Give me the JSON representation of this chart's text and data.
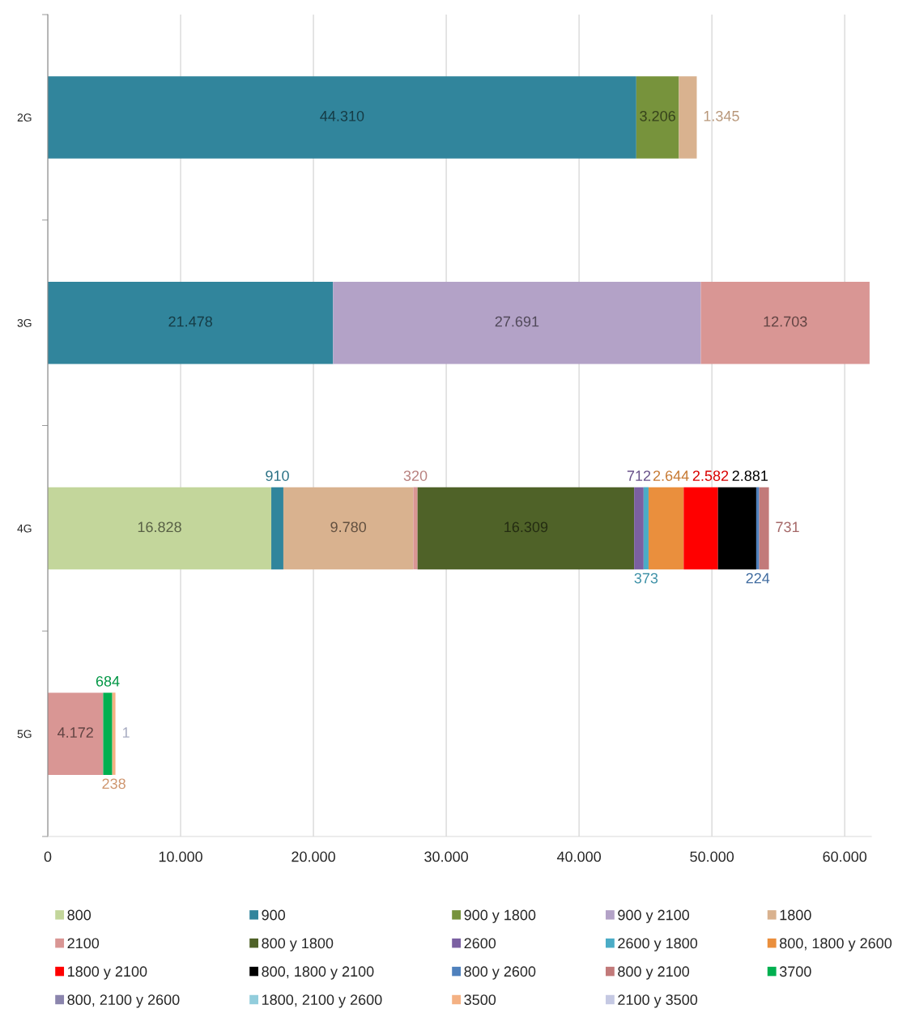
{
  "chart_data": {
    "type": "bar",
    "orientation": "horizontal",
    "stacked": true,
    "categories": [
      "2G",
      "3G",
      "4G",
      "5G"
    ],
    "series": [
      {
        "name": "800",
        "color": "#c3d69b",
        "values": [
          null,
          null,
          16828,
          null
        ],
        "value_labels": [
          null,
          null,
          "16.828",
          null
        ]
      },
      {
        "name": "900",
        "color": "#31859c",
        "values": [
          44310,
          21478,
          910,
          null
        ],
        "value_labels": [
          "44.310",
          "21.478",
          "910",
          null
        ]
      },
      {
        "name": "900 y 1800",
        "color": "#77933c",
        "values": [
          3206,
          null,
          null,
          null
        ],
        "value_labels": [
          "3.206",
          null,
          null,
          null
        ]
      },
      {
        "name": "900 y 2100",
        "color": "#b3a2c7",
        "values": [
          null,
          27691,
          null,
          null
        ],
        "value_labels": [
          null,
          "27.691",
          null,
          null
        ]
      },
      {
        "name": "1800",
        "color": "#d9b28f",
        "values": [
          1345,
          null,
          9780,
          null
        ],
        "value_labels": [
          "1.345",
          null,
          "9.780",
          null
        ]
      },
      {
        "name": "2100",
        "color": "#d99694",
        "values": [
          null,
          12703,
          320,
          4172
        ],
        "value_labels": [
          null,
          "12.703",
          "320",
          "4.172"
        ]
      },
      {
        "name": "800 y 1800",
        "color": "#4f6228",
        "values": [
          null,
          null,
          16309,
          null
        ],
        "value_labels": [
          null,
          null,
          "16.309",
          null
        ]
      },
      {
        "name": "2600",
        "color": "#7b60a2",
        "values": [
          null,
          null,
          712,
          null
        ],
        "value_labels": [
          null,
          null,
          "712",
          null
        ]
      },
      {
        "name": "2600 y 1800",
        "color": "#4bacc6",
        "values": [
          null,
          null,
          373,
          null
        ],
        "value_labels": [
          null,
          null,
          "373",
          null
        ]
      },
      {
        "name": "800, 1800 y 2600",
        "color": "#ea8f3d",
        "values": [
          null,
          null,
          2644,
          null
        ],
        "value_labels": [
          null,
          null,
          "2.644",
          null
        ]
      },
      {
        "name": "1800 y 2100",
        "color": "#ff0000",
        "values": [
          null,
          null,
          2582,
          null
        ],
        "value_labels": [
          null,
          null,
          "2.582",
          null
        ]
      },
      {
        "name": "800, 1800 y 2100",
        "color": "#000000",
        "values": [
          null,
          null,
          2881,
          null
        ],
        "value_labels": [
          null,
          null,
          "2.881",
          null
        ]
      },
      {
        "name": "800 y 2600",
        "color": "#4f81bd",
        "values": [
          null,
          null,
          224,
          null
        ],
        "value_labels": [
          null,
          null,
          "224",
          null
        ]
      },
      {
        "name": "800 y 2100",
        "color": "#c27a7a",
        "values": [
          null,
          null,
          731,
          null
        ],
        "value_labels": [
          null,
          null,
          "731",
          null
        ]
      },
      {
        "name": "3700",
        "color": "#00b050",
        "values": [
          null,
          null,
          null,
          684
        ],
        "value_labels": [
          null,
          null,
          null,
          "684"
        ]
      },
      {
        "name": "800, 2100 y 2600",
        "color": "#8b85ad",
        "values": [
          null,
          null,
          null,
          null
        ]
      },
      {
        "name": "1800, 2100 y 2600",
        "color": "#92cddc",
        "values": [
          null,
          null,
          null,
          null
        ]
      },
      {
        "name": "3500",
        "color": "#f4b183",
        "values": [
          null,
          null,
          null,
          238
        ],
        "value_labels": [
          null,
          null,
          null,
          "238"
        ]
      },
      {
        "name": "2100 y 3500",
        "color": "#c5c9e3",
        "values": [
          null,
          null,
          null,
          1
        ],
        "value_labels": [
          null,
          null,
          null,
          "1"
        ]
      }
    ],
    "xlim": [
      0,
      62000
    ],
    "xticks": [
      0,
      {
        "value": 10000,
        "label": "10.000"
      },
      {
        "value": 20000,
        "label": "20.000"
      },
      {
        "value": 30000,
        "label": "30.000"
      },
      {
        "value": 40000,
        "label": "40.000"
      },
      {
        "value": 50000,
        "label": "50.000"
      },
      {
        "value": 60000,
        "label": "60.000"
      }
    ],
    "grid": "x",
    "legend": "bottom"
  }
}
